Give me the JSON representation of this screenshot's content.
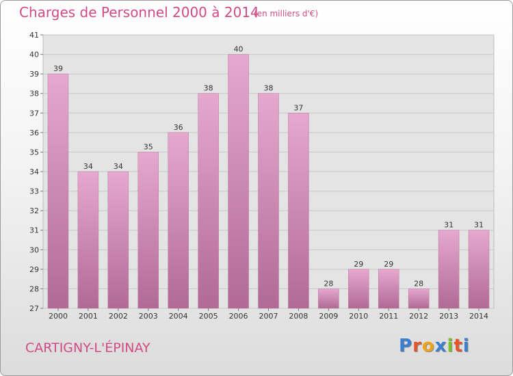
{
  "header": {
    "title": "Charges de Personnel 2000 à 2014",
    "subtitle": "(en milliers d'€)"
  },
  "footer": {
    "town": "CARTIGNY-L'ÉPINAY",
    "logo": "Proxiti"
  },
  "colors": {
    "accent": "#d04a86",
    "bar_top": "#e6a8cf",
    "bar_bottom": "#b06a95",
    "logo_letters": [
      "#3a7fd0",
      "#e8542a",
      "#f0a21c",
      "#3a7fd0",
      "#7cbf2a",
      "#e8542a",
      "#3a7fd0"
    ]
  },
  "chart_data": {
    "type": "bar",
    "categories": [
      "2000",
      "2001",
      "2002",
      "2003",
      "2004",
      "2005",
      "2006",
      "2007",
      "2008",
      "2009",
      "2010",
      "2011",
      "2012",
      "2013",
      "2014"
    ],
    "values": [
      39,
      34,
      34,
      35,
      36,
      38,
      40,
      38,
      37,
      28,
      29,
      29,
      28,
      31,
      31
    ],
    "ylim": [
      27,
      41
    ],
    "yticks": [
      27,
      28,
      29,
      30,
      31,
      32,
      33,
      34,
      35,
      36,
      37,
      38,
      39,
      40,
      41
    ],
    "grid": true,
    "data_labels": true
  }
}
